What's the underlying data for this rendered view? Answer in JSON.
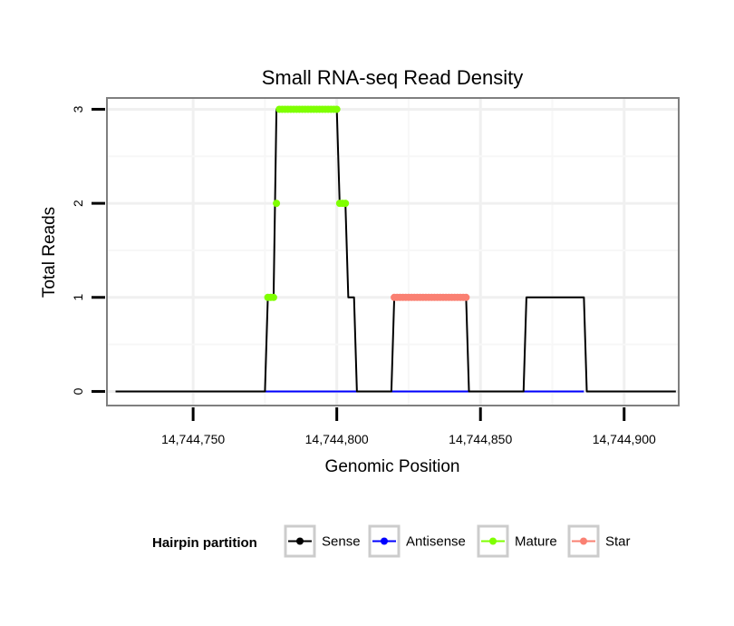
{
  "chart_data": {
    "type": "line",
    "title": "Small RNA-seq Read Density",
    "xlabel": "Genomic Position",
    "ylabel": "Total Reads",
    "xlim": [
      14744720,
      14744919
    ],
    "ylim": [
      -0.15,
      3.12
    ],
    "x_ticks": [
      14744750,
      14744800,
      14744850,
      14744900
    ],
    "x_tick_labels": [
      "14,744,750",
      "14,744,800",
      "14,744,850",
      "14,744,900"
    ],
    "y_ticks": [
      0,
      1,
      2,
      3
    ],
    "y_tick_labels": [
      "0",
      "1",
      "2",
      "3"
    ],
    "series": [
      {
        "name": "Sense",
        "color": "#000000",
        "kind": "line",
        "x": [
          14744723,
          14744775,
          14744776,
          14744778,
          14744779,
          14744800,
          14744801,
          14744803,
          14744804,
          14744806,
          14744807,
          14744819,
          14744820,
          14744845,
          14744846,
          14744865,
          14744866,
          14744886,
          14744887,
          14744918
        ],
        "y": [
          0,
          0,
          1,
          1,
          3,
          3,
          2,
          2,
          1,
          1,
          0,
          0,
          1,
          1,
          0,
          0,
          1,
          1,
          0,
          0
        ]
      },
      {
        "name": "Antisense",
        "color": "#0000ff",
        "kind": "line",
        "x": [
          14744775,
          14744886
        ],
        "y": [
          0,
          0
        ]
      },
      {
        "name": "Mature",
        "color": "#7fff00",
        "kind": "points",
        "x": [
          14744776,
          14744777,
          14744778,
          14744779,
          14744780,
          14744781,
          14744782,
          14744783,
          14744784,
          14744785,
          14744786,
          14744787,
          14744788,
          14744789,
          14744790,
          14744791,
          14744792,
          14744793,
          14744794,
          14744795,
          14744796,
          14744797,
          14744798,
          14744799,
          14744800,
          14744801,
          14744802,
          14744803
        ],
        "y": [
          1,
          1,
          1,
          2,
          3,
          3,
          3,
          3,
          3,
          3,
          3,
          3,
          3,
          3,
          3,
          3,
          3,
          3,
          3,
          3,
          3,
          3,
          3,
          3,
          3,
          2,
          2,
          2
        ]
      },
      {
        "name": "Star",
        "color": "#fa8072",
        "kind": "points",
        "x": [
          14744820,
          14744821,
          14744822,
          14744823,
          14744824,
          14744825,
          14744826,
          14744827,
          14744828,
          14744829,
          14744830,
          14744831,
          14744832,
          14744833,
          14744834,
          14744835,
          14744836,
          14744837,
          14744838,
          14744839,
          14744840,
          14744841,
          14744842,
          14744843,
          14744844,
          14744845
        ],
        "y": [
          1,
          1,
          1,
          1,
          1,
          1,
          1,
          1,
          1,
          1,
          1,
          1,
          1,
          1,
          1,
          1,
          1,
          1,
          1,
          1,
          1,
          1,
          1,
          1,
          1,
          1
        ]
      }
    ],
    "legend": {
      "title": "Hairpin partition",
      "position": "bottom",
      "items": [
        {
          "label": "Sense",
          "color": "#000000"
        },
        {
          "label": "Antisense",
          "color": "#0000ff"
        },
        {
          "label": "Mature",
          "color": "#7fff00"
        },
        {
          "label": "Star",
          "color": "#fa8072"
        }
      ]
    },
    "grid": true
  }
}
